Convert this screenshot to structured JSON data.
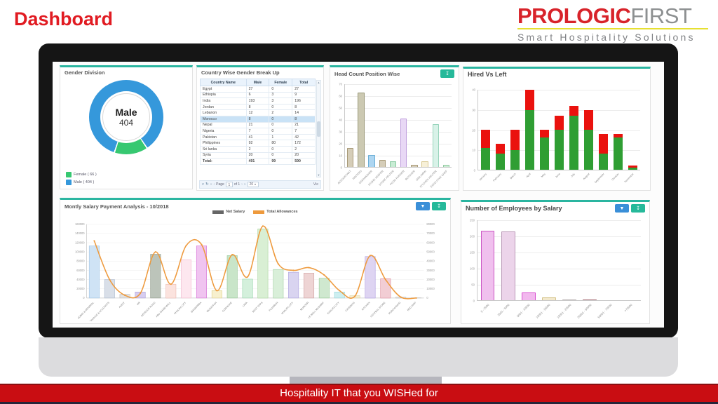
{
  "header": {
    "title": "Dashboard",
    "logo": {
      "brand_bold": "PROLOGIC",
      "brand_light": "FIRST",
      "tagline": "Smart Hospitality Solutions",
      "brand_color": "#d8232a",
      "underline_color": "#e6e032"
    }
  },
  "footer": {
    "text": "Hospitality IT that you WISHed for",
    "bg_color": "#c90d12"
  },
  "icons": {
    "download_glyph": "↧",
    "filter_glyph": "▼",
    "search_glyph": "⌕",
    "refresh_glyph": "↻",
    "scroll_up_glyph": "▲",
    "scroll_down_glyph": "▼",
    "caret_glyph": "▼",
    "nav_first": "«",
    "nav_prev": "‹",
    "nav_next": "›",
    "nav_last": "»"
  },
  "chart_data": [
    {
      "type": "pie",
      "title": "Gender Division",
      "center_label": "Male",
      "center_value": "404",
      "slices": [
        {
          "name": "Female",
          "value": 66,
          "color": "#37c871",
          "legend_label": "Female ( 66 )"
        },
        {
          "name": "Male",
          "value": 404,
          "color": "#3598db",
          "legend_label": "Male ( 404 )"
        }
      ]
    },
    {
      "type": "table",
      "title": "Country Wise Gender Break Up",
      "columns": [
        "Country Name",
        "Male",
        "Female",
        "Total"
      ],
      "rows": [
        [
          "Egypt",
          "27",
          "0",
          "27"
        ],
        [
          "Ethiopia",
          "6",
          "3",
          "9"
        ],
        [
          "India",
          "193",
          "3",
          "196"
        ],
        [
          "Jordan",
          "8",
          "0",
          "8"
        ],
        [
          "Lebanon",
          "12",
          "2",
          "14"
        ],
        [
          "Morocco",
          "8",
          "0",
          "8"
        ],
        [
          "Nepal",
          "21",
          "0",
          "21"
        ],
        [
          "Nigeria",
          "7",
          "0",
          "7"
        ],
        [
          "Pakistan",
          "41",
          "1",
          "42"
        ],
        [
          "Philippines",
          "92",
          "80",
          "172"
        ],
        [
          "Sri lanka",
          "2",
          "0",
          "2"
        ],
        [
          "Syria",
          "20",
          "0",
          "20"
        ]
      ],
      "total_row": [
        "Total:",
        "491",
        "99",
        "590"
      ],
      "selected_country": "Morocco",
      "pager": {
        "page_label": "Page",
        "page_value": "1",
        "of_label": "of 1",
        "page_size": "20",
        "view_label": "Vie"
      }
    },
    {
      "type": "bar",
      "title": "Head Count Position Wise",
      "categories": [
        "ACCOUNTANT",
        "WAITERS",
        "DISHWASHER",
        "STORE KEEPER",
        "STORE HELPER",
        "FOOD RUNNER",
        "BUTCHER",
        "GRILLMAN",
        "KITCHEN HELPER",
        "EXECUTIVE CHEF"
      ],
      "values": [
        16,
        63,
        10,
        6,
        5,
        41,
        2,
        5,
        36,
        2
      ],
      "ylim": [
        0,
        70
      ],
      "yticks": [
        0,
        10,
        20,
        30,
        40,
        50,
        60,
        70
      ],
      "bar_fills": [
        "#d5cdb8",
        "#ccc9b2",
        "#aed6f1",
        "#d5cdb8",
        "#c8ecd4",
        "#e8d8f5",
        "#d5cdb8",
        "#f7f0d8",
        "#d8f2e8",
        "#ccecd4"
      ],
      "bar_strokes": [
        "#a89a78",
        "#9a9878",
        "#6aaed6",
        "#a89a78",
        "#88c9a0",
        "#c0a0dd",
        "#a89a78",
        "#d8c890",
        "#98d4bc",
        "#90c9a0"
      ]
    },
    {
      "type": "stacked-bar",
      "title": "Hired Vs Left",
      "categories": [
        "January",
        "February",
        "March",
        "April",
        "May",
        "June",
        "July",
        "August",
        "September",
        "October",
        "November"
      ],
      "series": [
        {
          "name": "Hired",
          "color": "#2f9e33",
          "values": [
            11,
            8,
            10,
            30,
            16,
            20,
            27,
            20,
            8,
            16,
            1
          ]
        },
        {
          "name": "Left",
          "color": "#ea120e",
          "values": [
            9,
            5,
            10,
            10,
            4,
            7,
            5,
            10,
            10,
            2,
            1
          ]
        }
      ],
      "ylim": [
        0,
        40
      ],
      "yticks": [
        0,
        10,
        20,
        30,
        40
      ]
    },
    {
      "type": "combo-bar-line",
      "title": "Montly Salary Payment Analysis - 10/2018",
      "categories": [
        "ADMIN & GENERAL",
        "FINANCE & ACCOUNTS",
        "AUDIT",
        "HR",
        "DEFENCE ROAD",
        "ABU DHABI MALL",
        "KHALIFA CITY",
        "SHAWARMA",
        "MUSAFFAH",
        "CORNICHE",
        "LIWA",
        "REST TOPS",
        "FUJAIRAH",
        "KHALIFA CITY",
        "MUROOR",
        "LE MALL MUSHRIF",
        "KHALIFA CITY",
        "CATERING",
        "KITCHEN",
        "CENTRAL STORE",
        "PURCHASING",
        "RED SHIP"
      ],
      "series": [
        {
          "name": "Net Salary",
          "type": "bar",
          "axis": "left",
          "values": [
            113000,
            40000,
            8000,
            13000,
            95000,
            30000,
            83000,
            113000,
            16000,
            92000,
            41000,
            150000,
            62000,
            56000,
            54000,
            43000,
            13000,
            5000,
            90000,
            42000,
            2000,
            500
          ]
        },
        {
          "name": "Total Allowances",
          "type": "line",
          "axis": "right",
          "color": "#ee9a3d",
          "values": [
            62000,
            20000,
            3000,
            5000,
            50000,
            15000,
            57000,
            58000,
            8000,
            47000,
            23000,
            78000,
            37000,
            30000,
            33000,
            25000,
            8000,
            2000,
            46000,
            20000,
            1000,
            0
          ]
        }
      ],
      "ylim_left": [
        0,
        160000
      ],
      "yticks_left": [
        0,
        20000,
        40000,
        60000,
        80000,
        100000,
        120000,
        140000,
        160000
      ],
      "ylim_right": [
        0,
        80000
      ],
      "yticks_right": [
        0,
        10000,
        20000,
        30000,
        40000,
        50000,
        60000,
        70000,
        80000
      ],
      "legend": [
        "Net Salary",
        "Total Allowances"
      ],
      "legend_colors": [
        "#666666",
        "#ee9a3d"
      ],
      "bar_fills": [
        "#cfe3f5",
        "#d9dfe8",
        "#e3e3e3",
        "#d6cdf0",
        "#bcc4ba",
        "#fbe3de",
        "#fde7ef",
        "#f0c4f0",
        "#f7f0ce",
        "#c9e5c9",
        "#d4f0dc",
        "#d9efd4",
        "#d9efd9",
        "#d9d4f0",
        "#eed4d4",
        "#cfe8cf",
        "#cdeef0",
        "#f5efd4",
        "#ded4f2",
        "#f2cdd4",
        "#e8e8e8",
        "#e8e8e8"
      ],
      "bar_strokes": [
        "#9cc3e5",
        "#aab8cc",
        "#bbbbbb",
        "#a899d8",
        "#8f9a8a",
        "#eab6ac",
        "#f2b8cd",
        "#d66fd6",
        "#ddcf8a",
        "#8fc48f",
        "#96d4aa",
        "#a5d49a",
        "#a0cfa0",
        "#a89ede",
        "#cf9e9e",
        "#94c994",
        "#8fd4d8",
        "#dcd09a",
        "#ab99dd",
        "#dd8f9e",
        "#bbbbbb",
        "#bbbbbb"
      ]
    },
    {
      "type": "bar",
      "title": "Number of Employees by Salary",
      "categories": [
        "0 - 2000",
        "2001 - 5000",
        "5001 - 10000",
        "10001 - 15000",
        "15001 - 20000",
        "20001 - 50000",
        "50001 - 70000",
        ">70000"
      ],
      "values": [
        218,
        215,
        24,
        8,
        2,
        2,
        0,
        0
      ],
      "ylim": [
        0,
        250
      ],
      "yticks": [
        0,
        50,
        100,
        150,
        200,
        250
      ],
      "bar_fills": [
        "#f0c0ee",
        "#ecd4ea",
        "#f2b8ee",
        "#f2e8cc",
        "#e4e0e0",
        "#e0c4c8",
        "#f6f0f0",
        "#f6f0f0"
      ],
      "bar_strokes": [
        "#cc55c4",
        "#bb9ab8",
        "#d84fd0",
        "#d4c48a",
        "#b8b0b0",
        "#a87078",
        "#dddddd",
        "#dddddd"
      ]
    }
  ]
}
